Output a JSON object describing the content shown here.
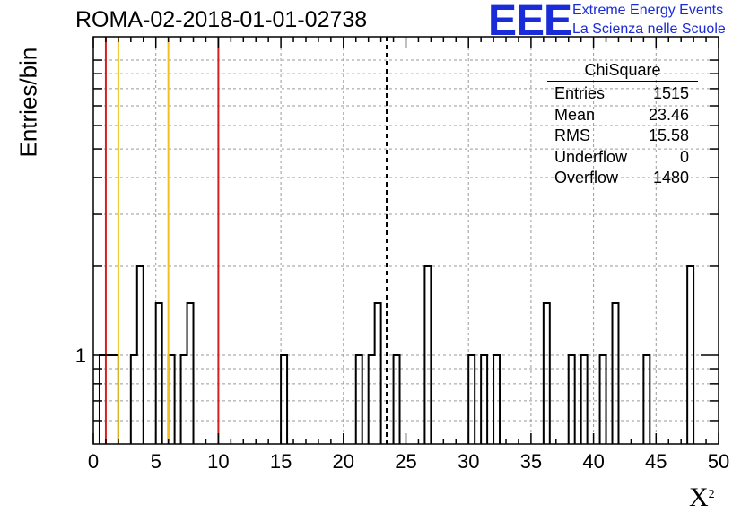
{
  "header": {
    "title": "ROMA-02-2018-01-01-02738",
    "logo_mark": "EEE",
    "logo_line1": "Extreme Energy Events",
    "logo_line2": "La Scienza nelle Scuole"
  },
  "stats": {
    "title": "ChiSquare",
    "rows": [
      {
        "label": "Entries",
        "value": "1515"
      },
      {
        "label": "Mean",
        "value": "23.46"
      },
      {
        "label": "RMS",
        "value": "15.58"
      },
      {
        "label": "Underflow",
        "value": "0"
      },
      {
        "label": "Overflow",
        "value": "1480"
      }
    ]
  },
  "colors": {
    "red_line": "#d62020",
    "yellow_line": "#f0c020",
    "logo": "#1a2bd8"
  },
  "chart_data": {
    "type": "bar",
    "xlabel": "X",
    "xlabel_superscript": "2",
    "ylabel": "Entries/bin",
    "xlim": [
      0,
      50
    ],
    "ylim": [
      0.5,
      12
    ],
    "yscale": "log",
    "xticks": [
      "0",
      "5",
      "10",
      "15",
      "20",
      "25",
      "30",
      "35",
      "40",
      "45",
      "50"
    ],
    "yticks": [
      "1"
    ],
    "grid": true,
    "bin_width": 0.5,
    "bins": [
      {
        "x": 0.5,
        "y": 1
      },
      {
        "x": 1.0,
        "y": 1
      },
      {
        "x": 1.5,
        "y": 1
      },
      {
        "x": 3.0,
        "y": 1
      },
      {
        "x": 3.5,
        "y": 2
      },
      {
        "x": 5.0,
        "y": 1.5
      },
      {
        "x": 6.0,
        "y": 1
      },
      {
        "x": 7.0,
        "y": 1
      },
      {
        "x": 7.5,
        "y": 1.5
      },
      {
        "x": 15.0,
        "y": 1
      },
      {
        "x": 21.0,
        "y": 1
      },
      {
        "x": 22.0,
        "y": 1
      },
      {
        "x": 22.5,
        "y": 1.5
      },
      {
        "x": 24.0,
        "y": 1
      },
      {
        "x": 26.5,
        "y": 2
      },
      {
        "x": 30.0,
        "y": 1
      },
      {
        "x": 31.0,
        "y": 1
      },
      {
        "x": 32.0,
        "y": 1
      },
      {
        "x": 36.0,
        "y": 1.5
      },
      {
        "x": 38.0,
        "y": 1
      },
      {
        "x": 39.0,
        "y": 1
      },
      {
        "x": 40.5,
        "y": 1
      },
      {
        "x": 41.5,
        "y": 1.5
      },
      {
        "x": 44.0,
        "y": 1
      },
      {
        "x": 47.5,
        "y": 2
      }
    ],
    "vertical_lines": [
      {
        "x": 1.0,
        "style": "solid",
        "color": "red"
      },
      {
        "x": 2.0,
        "style": "solid",
        "color": "yellow"
      },
      {
        "x": 6.0,
        "style": "solid",
        "color": "yellow"
      },
      {
        "x": 10.0,
        "style": "solid",
        "color": "red"
      },
      {
        "x": 23.46,
        "style": "dashed",
        "color": "black"
      }
    ]
  }
}
